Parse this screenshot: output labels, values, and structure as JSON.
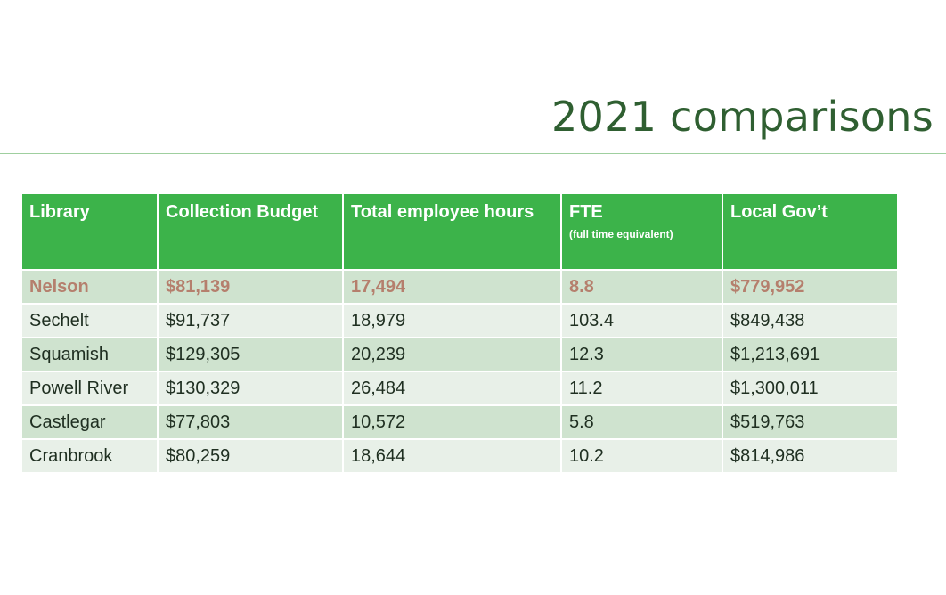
{
  "slide": {
    "title": "2021 comparisons"
  },
  "table": {
    "headers": [
      {
        "label": "Library",
        "sub": ""
      },
      {
        "label": "Collection Budget",
        "sub": ""
      },
      {
        "label": "Total employee hours",
        "sub": ""
      },
      {
        "label": "FTE",
        "sub": "(full time equivalent)"
      },
      {
        "label": "Local Gov’t",
        "sub": ""
      }
    ],
    "rows": [
      {
        "cells": [
          "Nelson",
          "$81,139",
          "17,494",
          "8.8",
          "$779,952"
        ],
        "highlight": true
      },
      {
        "cells": [
          "Sechelt",
          "$91,737",
          "18,979",
          "103.4",
          "$849,438"
        ],
        "highlight": false
      },
      {
        "cells": [
          "Squamish",
          "$129,305",
          "20,239",
          "12.3",
          "$1,213,691"
        ],
        "highlight": false
      },
      {
        "cells": [
          "Powell River",
          "$130,329",
          "26,484",
          "11.2",
          "$1,300,011"
        ],
        "highlight": false
      },
      {
        "cells": [
          "Castlegar",
          "$77,803",
          "10,572",
          "5.8",
          "$519,763"
        ],
        "highlight": false
      },
      {
        "cells": [
          "Cranbrook",
          "$80,259",
          "18,644",
          "10.2",
          "$814,986"
        ],
        "highlight": false
      }
    ]
  },
  "colors": {
    "title": "#2f5f31",
    "header_bg": "#3cb34a",
    "row_dark": "#cfe3cf",
    "row_light": "#e8f0e8",
    "highlight_text": "#b57f6d"
  }
}
